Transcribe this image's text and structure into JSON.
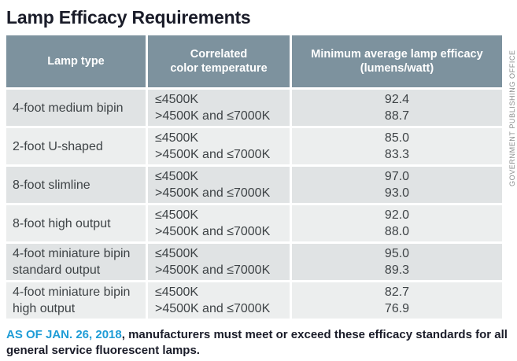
{
  "title": "Lamp Efficacy Requirements",
  "table": {
    "headers": [
      {
        "lines": [
          "Lamp type",
          ""
        ]
      },
      {
        "lines": [
          "Correlated",
          "color temperature"
        ]
      },
      {
        "lines": [
          "Minimum average lamp efficacy",
          "(lumens/watt)"
        ]
      }
    ],
    "rows": [
      {
        "lamp_type": "4-foot medium bipin",
        "cct": [
          "≤4500K",
          ">4500K and ≤7000K"
        ],
        "eff": [
          "92.4",
          "88.7"
        ]
      },
      {
        "lamp_type": "2-foot U-shaped",
        "cct": [
          "≤4500K",
          ">4500K and ≤7000K"
        ],
        "eff": [
          "85.0",
          "83.3"
        ]
      },
      {
        "lamp_type": "8-foot slimline",
        "cct": [
          "≤4500K",
          ">4500K and ≤7000K"
        ],
        "eff": [
          "97.0",
          "93.0"
        ]
      },
      {
        "lamp_type": "8-foot high output",
        "cct": [
          "≤4500K",
          ">4500K and ≤7000K"
        ],
        "eff": [
          "92.0",
          "88.0"
        ]
      },
      {
        "lamp_type": "4-foot miniature bipin standard output",
        "cct": [
          "≤4500K",
          ">4500K and ≤7000K"
        ],
        "eff": [
          "95.0",
          "89.3"
        ]
      },
      {
        "lamp_type": "4-foot miniature bipin high output",
        "cct": [
          "≤4500K",
          ">4500K and ≤7000K"
        ],
        "eff": [
          "82.7",
          "76.9"
        ]
      }
    ]
  },
  "footer": {
    "highlight": "AS OF JAN. 26, 2018",
    "rest": ", manufacturers must meet or exceed these efficacy standards for all general service fluorescent lamps."
  },
  "watermark": "GOVERNMENT PUBLISHING OFFICE",
  "colors": {
    "header_bg": "#7d929e",
    "row_dark": "#e0e3e4",
    "row_light": "#eceeee",
    "accent_blue": "#1e9cd6",
    "title_color": "#1a1c29",
    "body_text": "#3e4346",
    "watermark_color": "#8b8d8d",
    "divider": "#ffffff"
  }
}
